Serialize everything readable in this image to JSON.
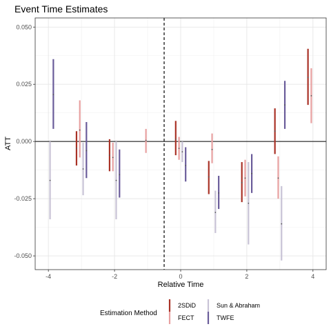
{
  "chart_data": {
    "type": "errorbar",
    "title": "Event Time Estimates",
    "xlabel": "Relative Time",
    "ylabel": "ATT",
    "xlim": [
      -4.4,
      4.4
    ],
    "ylim": [
      -0.056,
      0.054
    ],
    "x_ticks": [
      -4,
      -2,
      0,
      2,
      4
    ],
    "x_tick_labels": [
      "-4",
      "-2",
      "0",
      "2",
      "4"
    ],
    "y_ticks": [
      -0.05,
      -0.025,
      0.0,
      0.025,
      0.05
    ],
    "y_tick_labels": [
      "-0.050",
      "-0.025",
      "0.000",
      "0.025",
      "0.050"
    ],
    "reference_lines": {
      "hline": 0,
      "vline": -0.5
    },
    "grid": true,
    "legend": {
      "title": "Estimation Method",
      "position": "bottom"
    },
    "series": [
      {
        "name": "2SDiD",
        "color": "#a93226",
        "offset": -0.15,
        "points": [
          {
            "x": -3,
            "y": -0.003,
            "lo": -0.0105,
            "hi": 0.0045
          },
          {
            "x": -2,
            "y": -0.006,
            "lo": -0.013,
            "hi": 0.001
          },
          {
            "x": 0,
            "y": 0.001,
            "lo": -0.006,
            "hi": 0.009
          },
          {
            "x": 1,
            "y": -0.0155,
            "lo": -0.023,
            "hi": -0.0085
          },
          {
            "x": 2,
            "y": -0.018,
            "lo": -0.0265,
            "hi": -0.009
          },
          {
            "x": 3,
            "y": 0.0045,
            "lo": -0.0055,
            "hi": 0.0145
          },
          {
            "x": 4,
            "y": 0.028,
            "lo": 0.016,
            "hi": 0.0405
          }
        ]
      },
      {
        "name": "FECT",
        "color": "#e8a0a0",
        "offset": -0.05,
        "points": [
          {
            "x": -3,
            "y": 0.005,
            "lo": -0.007,
            "hi": 0.018
          },
          {
            "x": -2,
            "y": -0.007,
            "lo": -0.013,
            "hi": -0.0005
          },
          {
            "x": -1,
            "y": 0.0005,
            "lo": -0.005,
            "hi": 0.0055
          },
          {
            "x": 0,
            "y": -0.003,
            "lo": -0.008,
            "hi": 0.002
          },
          {
            "x": 1,
            "y": -0.0035,
            "lo": -0.0095,
            "hi": 0.0035
          },
          {
            "x": 2,
            "y": -0.016,
            "lo": -0.024,
            "hi": -0.008
          },
          {
            "x": 3,
            "y": -0.016,
            "lo": -0.025,
            "hi": -0.0065
          },
          {
            "x": 4,
            "y": 0.02,
            "lo": 0.008,
            "hi": 0.032
          }
        ]
      },
      {
        "name": "Sun & Abraham",
        "color": "#c8c3d6",
        "offset": 0.05,
        "points": [
          {
            "x": -4,
            "y": -0.017,
            "lo": -0.034,
            "hi": 0.0
          },
          {
            "x": -3,
            "y": -0.012,
            "lo": -0.0235,
            "hi": -0.0005
          },
          {
            "x": -2,
            "y": -0.017,
            "lo": -0.034,
            "hi": 0.0
          },
          {
            "x": 0,
            "y": -0.0045,
            "lo": -0.009,
            "hi": 0.0
          },
          {
            "x": 1,
            "y": -0.031,
            "lo": -0.04,
            "hi": -0.0215
          },
          {
            "x": 2,
            "y": -0.027,
            "lo": -0.045,
            "hi": -0.009
          },
          {
            "x": 3,
            "y": -0.036,
            "lo": -0.052,
            "hi": -0.0195
          }
        ]
      },
      {
        "name": "TWFE",
        "color": "#6a5c9a",
        "offset": 0.15,
        "points": [
          {
            "x": -4,
            "y": 0.0205,
            "lo": 0.0055,
            "hi": 0.036
          },
          {
            "x": -3,
            "y": -0.004,
            "lo": -0.016,
            "hi": 0.0085
          },
          {
            "x": -2,
            "y": -0.0145,
            "lo": -0.0245,
            "hi": -0.0035
          },
          {
            "x": 0,
            "y": -0.0105,
            "lo": -0.0175,
            "hi": -0.0025
          },
          {
            "x": 1,
            "y": -0.0225,
            "lo": -0.0295,
            "hi": -0.015
          },
          {
            "x": 2,
            "y": -0.014,
            "lo": -0.0225,
            "hi": -0.0055
          },
          {
            "x": 3,
            "y": 0.016,
            "lo": 0.0055,
            "hi": 0.0265
          }
        ]
      }
    ]
  }
}
